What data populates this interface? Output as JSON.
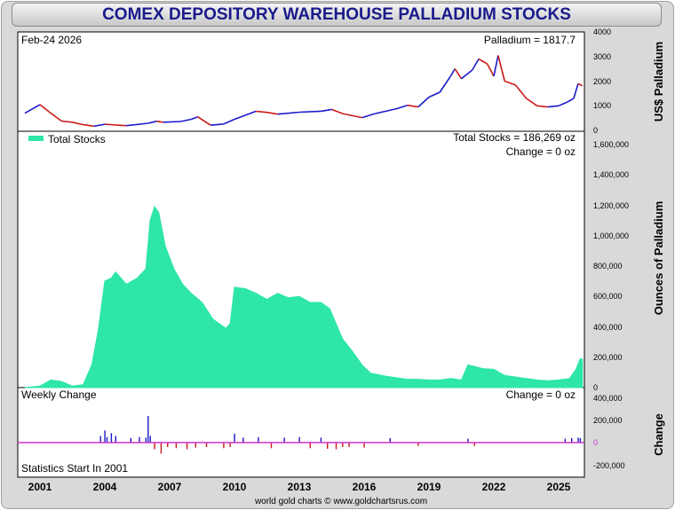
{
  "title": "COMEX DEPOSITORY WAREHOUSE PALLADIUM STOCKS",
  "footer": "world gold charts © www.goldchartsrus.com",
  "colors": {
    "stocks": "#2ee6a8",
    "price_up": "#1a1acc",
    "price_down": "#cc1a1a",
    "change_pos": "#1a1acc",
    "change_neg": "#cc1a1a",
    "zero_line": "#cc33cc",
    "title": "#1a1a8c"
  },
  "x_axis": {
    "ticks": [
      "2001",
      "2004",
      "2007",
      "2010",
      "2013",
      "2016",
      "2019",
      "2022",
      "2025"
    ]
  },
  "price_panel": {
    "date_label": "Feb-24  2026",
    "value_label": "Palladium = 1817.7",
    "axis_title": "US$ Palladium",
    "ticks": [
      "0",
      "1000",
      "2000",
      "3000",
      "4000"
    ]
  },
  "stocks_panel": {
    "legend": "Total Stocks",
    "total_label": "Total Stocks = 186,269 oz",
    "change_label": "Change = 0 oz",
    "axis_title": "Ounces of Palladium",
    "ticks": [
      "0",
      "200,000",
      "400,000",
      "600,000",
      "800,000",
      "1,000,000",
      "1,200,000",
      "1,400,000",
      "1,600,000"
    ]
  },
  "change_panel": {
    "label": "Weekly Change",
    "change_label": "Change = 0 oz",
    "note": "Statistics Start In 2001",
    "axis_title": "Change",
    "ticks": [
      "400,000",
      "200,000",
      "0",
      "-200,000"
    ]
  },
  "chart_data": [
    {
      "type": "line",
      "series": [
        {
          "name": "Palladium",
          "x": [
            2000.3,
            2001.0,
            2001.5,
            2002.0,
            2002.5,
            2003.0,
            2003.5,
            2004.0,
            2005.0,
            2006.0,
            2006.4,
            2006.7,
            2007.5,
            2008.0,
            2008.3,
            2008.9,
            2009.5,
            2010.0,
            2011.0,
            2011.5,
            2012.0,
            2013.0,
            2014.0,
            2014.5,
            2015.0,
            2015.9,
            2016.5,
            2017.5,
            2018.0,
            2018.5,
            2019.0,
            2019.5,
            2020.0,
            2020.2,
            2020.5,
            2021.0,
            2021.3,
            2021.7,
            2022.0,
            2022.2,
            2022.5,
            2023.0,
            2023.5,
            2024.0,
            2024.5,
            2025.0,
            2025.4,
            2025.7,
            2025.9,
            2026.1
          ],
          "values": [
            700,
            1050,
            700,
            380,
            330,
            230,
            170,
            250,
            190,
            290,
            370,
            330,
            360,
            450,
            550,
            210,
            260,
            450,
            780,
            730,
            660,
            740,
            780,
            850,
            680,
            520,
            680,
            880,
            1020,
            950,
            1350,
            1550,
            2200,
            2500,
            2100,
            2450,
            2900,
            2700,
            2200,
            3050,
            2000,
            1850,
            1300,
            1000,
            950,
            1000,
            1150,
            1300,
            1900,
            1818
          ]
        }
      ],
      "ylim": [
        0,
        4000
      ]
    },
    {
      "type": "area",
      "series": [
        {
          "name": "Total Stocks",
          "x": [
            2000.3,
            2001.0,
            2001.5,
            2002.0,
            2002.5,
            2003.0,
            2003.4,
            2003.7,
            2004.0,
            2004.3,
            2004.5,
            2005.0,
            2005.5,
            2005.9,
            2006.1,
            2006.3,
            2006.5,
            2006.8,
            2007.2,
            2007.6,
            2008.0,
            2008.5,
            2009.0,
            2009.3,
            2009.6,
            2009.8,
            2010.0,
            2010.5,
            2011.0,
            2011.5,
            2012.0,
            2012.5,
            2013.0,
            2013.5,
            2014.0,
            2014.4,
            2014.7,
            2015.0,
            2015.5,
            2015.9,
            2016.3,
            2017.0,
            2018.0,
            2018.5,
            2019.0,
            2019.5,
            2020.0,
            2020.5,
            2020.8,
            2021.5,
            2022.0,
            2022.5,
            2023.0,
            2023.5,
            2024.0,
            2024.5,
            2025.0,
            2025.5,
            2025.8,
            2026.0,
            2026.1
          ],
          "values": [
            0,
            10000,
            50000,
            40000,
            10000,
            20000,
            150000,
            380000,
            700000,
            720000,
            760000,
            680000,
            720000,
            780000,
            1100000,
            1190000,
            1150000,
            930000,
            780000,
            680000,
            620000,
            560000,
            450000,
            420000,
            390000,
            420000,
            660000,
            650000,
            620000,
            580000,
            620000,
            590000,
            600000,
            560000,
            560000,
            520000,
            420000,
            320000,
            230000,
            150000,
            95000,
            75000,
            55000,
            55000,
            50000,
            50000,
            60000,
            50000,
            150000,
            125000,
            120000,
            80000,
            70000,
            60000,
            50000,
            45000,
            50000,
            60000,
            120000,
            190000,
            186269
          ]
        }
      ],
      "ylim": [
        0,
        1650000
      ]
    },
    {
      "type": "bar",
      "series": [
        {
          "name": "Weekly Change",
          "x": [
            2003.8,
            2004.0,
            2004.1,
            2004.3,
            2004.5,
            2005.2,
            2005.6,
            2005.9,
            2006.0,
            2006.1,
            2006.3,
            2006.6,
            2006.9,
            2007.3,
            2007.8,
            2008.2,
            2008.7,
            2009.5,
            2009.8,
            2010.0,
            2010.4,
            2011.1,
            2011.7,
            2012.3,
            2013.0,
            2013.5,
            2014.0,
            2014.3,
            2014.7,
            2015.0,
            2015.3,
            2016.0,
            2017.2,
            2018.5,
            2020.8,
            2021.1,
            2025.3,
            2025.6,
            2025.9,
            2026.0
          ],
          "values": [
            60000,
            110000,
            50000,
            85000,
            60000,
            40000,
            50000,
            45000,
            240000,
            60000,
            -60000,
            -100000,
            -40000,
            -50000,
            -60000,
            -45000,
            -40000,
            -50000,
            -40000,
            80000,
            45000,
            50000,
            -50000,
            45000,
            50000,
            -50000,
            45000,
            -55000,
            -60000,
            -40000,
            -40000,
            -45000,
            40000,
            -30000,
            35000,
            -30000,
            35000,
            40000,
            45000,
            40000
          ]
        }
      ],
      "ylim": [
        -250000,
        450000
      ]
    }
  ]
}
